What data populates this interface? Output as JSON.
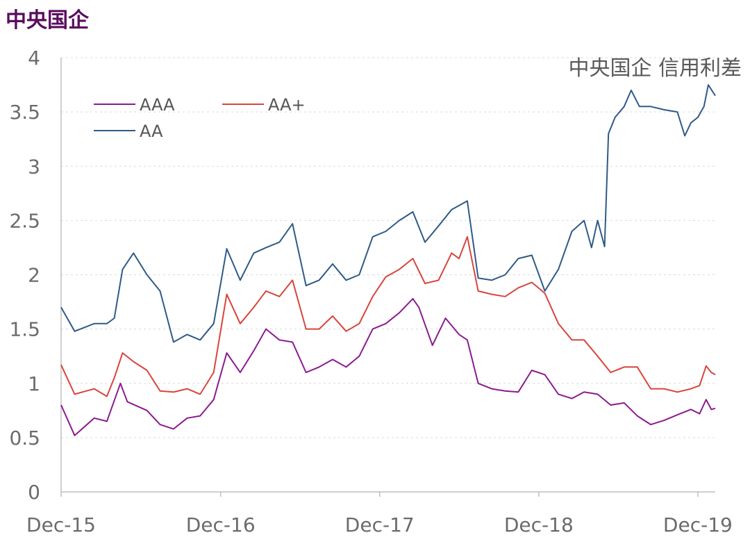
{
  "page_title": "中央国企",
  "colors": {
    "title": "#5a0d5e",
    "AAA": "#8b1a8f",
    "AA+": "#d9443c",
    "AA": "#2e5a87",
    "grid": "#d9d9d9",
    "axis": "#bfbfbf",
    "tick_text": "#6b6b6b",
    "inner_title": "#595959"
  },
  "chart_data": {
    "type": "line",
    "title": "中央国企 信用利差",
    "xlabel": "",
    "ylabel": "",
    "x_range": [
      "2015-12-01",
      "2020-01-10"
    ],
    "ylim": [
      0,
      4
    ],
    "yticks": [
      0,
      0.5,
      1,
      1.5,
      2,
      2.5,
      3,
      3.5,
      4
    ],
    "ytick_labels": [
      "0",
      "0.5",
      "1",
      "1.5",
      "2",
      "2.5",
      "3",
      "3.5",
      "4"
    ],
    "xticks": [
      "2015-12-01",
      "2016-12-01",
      "2017-12-01",
      "2018-12-01",
      "2019-12-01"
    ],
    "xtick_labels": [
      "Dec-15",
      "Dec-16",
      "Dec-17",
      "Dec-18",
      "Dec-19"
    ],
    "grid": true,
    "legend_position": "top-left",
    "series": [
      {
        "name": "AAA",
        "color": "#8b1a8f",
        "points": [
          [
            "2015-12-01",
            0.8
          ],
          [
            "2016-01-01",
            0.52
          ],
          [
            "2016-02-15",
            0.68
          ],
          [
            "2016-03-15",
            0.65
          ],
          [
            "2016-04-15",
            1.0
          ],
          [
            "2016-05-01",
            0.83
          ],
          [
            "2016-06-15",
            0.75
          ],
          [
            "2016-07-15",
            0.62
          ],
          [
            "2016-08-15",
            0.58
          ],
          [
            "2016-09-15",
            0.68
          ],
          [
            "2016-10-15",
            0.7
          ],
          [
            "2016-11-15",
            0.85
          ],
          [
            "2016-12-15",
            1.28
          ],
          [
            "2017-01-15",
            1.1
          ],
          [
            "2017-02-15",
            1.3
          ],
          [
            "2017-03-15",
            1.5
          ],
          [
            "2017-04-15",
            1.4
          ],
          [
            "2017-05-15",
            1.38
          ],
          [
            "2017-06-15",
            1.1
          ],
          [
            "2017-07-15",
            1.15
          ],
          [
            "2017-08-15",
            1.22
          ],
          [
            "2017-09-15",
            1.15
          ],
          [
            "2017-10-15",
            1.25
          ],
          [
            "2017-11-15",
            1.5
          ],
          [
            "2017-12-15",
            1.55
          ],
          [
            "2018-01-15",
            1.65
          ],
          [
            "2018-02-15",
            1.78
          ],
          [
            "2018-03-01",
            1.7
          ],
          [
            "2018-04-01",
            1.35
          ],
          [
            "2018-05-01",
            1.6
          ],
          [
            "2018-06-01",
            1.45
          ],
          [
            "2018-06-20",
            1.4
          ],
          [
            "2018-07-15",
            1.0
          ],
          [
            "2018-08-15",
            0.95
          ],
          [
            "2018-09-15",
            0.93
          ],
          [
            "2018-10-15",
            0.92
          ],
          [
            "2018-11-15",
            1.12
          ],
          [
            "2018-12-15",
            1.08
          ],
          [
            "2019-01-15",
            0.9
          ],
          [
            "2019-02-15",
            0.86
          ],
          [
            "2019-03-15",
            0.92
          ],
          [
            "2019-04-15",
            0.9
          ],
          [
            "2019-05-15",
            0.8
          ],
          [
            "2019-06-15",
            0.82
          ],
          [
            "2019-07-15",
            0.7
          ],
          [
            "2019-08-15",
            0.62
          ],
          [
            "2019-09-15",
            0.66
          ],
          [
            "2019-10-15",
            0.71
          ],
          [
            "2019-11-15",
            0.76
          ],
          [
            "2019-12-05",
            0.72
          ],
          [
            "2019-12-20",
            0.85
          ],
          [
            "2020-01-01",
            0.76
          ],
          [
            "2020-01-10",
            0.77
          ]
        ]
      },
      {
        "name": "AA+",
        "color": "#d9443c",
        "points": [
          [
            "2015-12-01",
            1.17
          ],
          [
            "2016-01-01",
            0.9
          ],
          [
            "2016-02-15",
            0.95
          ],
          [
            "2016-03-15",
            0.88
          ],
          [
            "2016-04-01",
            1.05
          ],
          [
            "2016-04-20",
            1.28
          ],
          [
            "2016-05-15",
            1.2
          ],
          [
            "2016-06-15",
            1.12
          ],
          [
            "2016-07-15",
            0.93
          ],
          [
            "2016-08-15",
            0.92
          ],
          [
            "2016-09-15",
            0.95
          ],
          [
            "2016-10-15",
            0.9
          ],
          [
            "2016-11-15",
            1.1
          ],
          [
            "2016-12-15",
            1.82
          ],
          [
            "2017-01-15",
            1.55
          ],
          [
            "2017-02-15",
            1.7
          ],
          [
            "2017-03-15",
            1.85
          ],
          [
            "2017-04-15",
            1.8
          ],
          [
            "2017-05-15",
            1.95
          ],
          [
            "2017-06-15",
            1.5
          ],
          [
            "2017-07-15",
            1.5
          ],
          [
            "2017-08-15",
            1.62
          ],
          [
            "2017-09-15",
            1.48
          ],
          [
            "2017-10-15",
            1.55
          ],
          [
            "2017-11-15",
            1.8
          ],
          [
            "2017-12-15",
            1.98
          ],
          [
            "2018-01-15",
            2.05
          ],
          [
            "2018-02-15",
            2.15
          ],
          [
            "2018-03-15",
            1.92
          ],
          [
            "2018-04-15",
            1.95
          ],
          [
            "2018-05-15",
            2.2
          ],
          [
            "2018-06-01",
            2.15
          ],
          [
            "2018-06-20",
            2.35
          ],
          [
            "2018-07-15",
            1.85
          ],
          [
            "2018-08-15",
            1.82
          ],
          [
            "2018-09-15",
            1.8
          ],
          [
            "2018-10-15",
            1.88
          ],
          [
            "2018-11-15",
            1.93
          ],
          [
            "2018-12-15",
            1.83
          ],
          [
            "2019-01-15",
            1.55
          ],
          [
            "2019-02-15",
            1.4
          ],
          [
            "2019-03-15",
            1.4
          ],
          [
            "2019-04-15",
            1.25
          ],
          [
            "2019-05-15",
            1.1
          ],
          [
            "2019-06-15",
            1.15
          ],
          [
            "2019-07-15",
            1.15
          ],
          [
            "2019-08-15",
            0.95
          ],
          [
            "2019-09-15",
            0.95
          ],
          [
            "2019-10-15",
            0.92
          ],
          [
            "2019-11-15",
            0.95
          ],
          [
            "2019-12-05",
            0.98
          ],
          [
            "2019-12-20",
            1.16
          ],
          [
            "2020-01-01",
            1.1
          ],
          [
            "2020-01-10",
            1.08
          ]
        ]
      },
      {
        "name": "AA",
        "color": "#2e5a87",
        "points": [
          [
            "2015-12-01",
            1.7
          ],
          [
            "2016-01-01",
            1.48
          ],
          [
            "2016-02-15",
            1.55
          ],
          [
            "2016-03-15",
            1.55
          ],
          [
            "2016-04-01",
            1.6
          ],
          [
            "2016-04-20",
            2.05
          ],
          [
            "2016-05-15",
            2.2
          ],
          [
            "2016-06-15",
            2.0
          ],
          [
            "2016-07-15",
            1.85
          ],
          [
            "2016-08-15",
            1.38
          ],
          [
            "2016-09-15",
            1.45
          ],
          [
            "2016-10-15",
            1.4
          ],
          [
            "2016-11-15",
            1.55
          ],
          [
            "2016-12-15",
            2.24
          ],
          [
            "2017-01-15",
            1.95
          ],
          [
            "2017-02-15",
            2.2
          ],
          [
            "2017-03-15",
            2.25
          ],
          [
            "2017-04-15",
            2.3
          ],
          [
            "2017-05-15",
            2.47
          ],
          [
            "2017-06-15",
            1.9
          ],
          [
            "2017-07-15",
            1.95
          ],
          [
            "2017-08-15",
            2.1
          ],
          [
            "2017-09-15",
            1.95
          ],
          [
            "2017-10-15",
            2.0
          ],
          [
            "2017-11-15",
            2.35
          ],
          [
            "2017-12-15",
            2.4
          ],
          [
            "2018-01-15",
            2.5
          ],
          [
            "2018-02-15",
            2.58
          ],
          [
            "2018-03-15",
            2.3
          ],
          [
            "2018-04-15",
            2.45
          ],
          [
            "2018-05-15",
            2.6
          ],
          [
            "2018-06-20",
            2.68
          ],
          [
            "2018-07-15",
            1.97
          ],
          [
            "2018-08-15",
            1.95
          ],
          [
            "2018-09-15",
            2.0
          ],
          [
            "2018-10-15",
            2.15
          ],
          [
            "2018-11-15",
            2.18
          ],
          [
            "2018-12-15",
            1.85
          ],
          [
            "2019-01-15",
            2.05
          ],
          [
            "2019-02-15",
            2.4
          ],
          [
            "2019-03-15",
            2.5
          ],
          [
            "2019-04-01",
            2.25
          ],
          [
            "2019-04-15",
            2.5
          ],
          [
            "2019-05-01",
            2.26
          ],
          [
            "2019-05-10",
            3.3
          ],
          [
            "2019-05-25",
            3.45
          ],
          [
            "2019-06-15",
            3.55
          ],
          [
            "2019-07-01",
            3.7
          ],
          [
            "2019-07-20",
            3.55
          ],
          [
            "2019-08-15",
            3.55
          ],
          [
            "2019-09-15",
            3.52
          ],
          [
            "2019-10-15",
            3.5
          ],
          [
            "2019-11-01",
            3.28
          ],
          [
            "2019-11-15",
            3.4
          ],
          [
            "2019-12-01",
            3.45
          ],
          [
            "2019-12-15",
            3.55
          ],
          [
            "2019-12-25",
            3.75
          ],
          [
            "2020-01-05",
            3.68
          ],
          [
            "2020-01-10",
            3.65
          ]
        ]
      }
    ]
  }
}
